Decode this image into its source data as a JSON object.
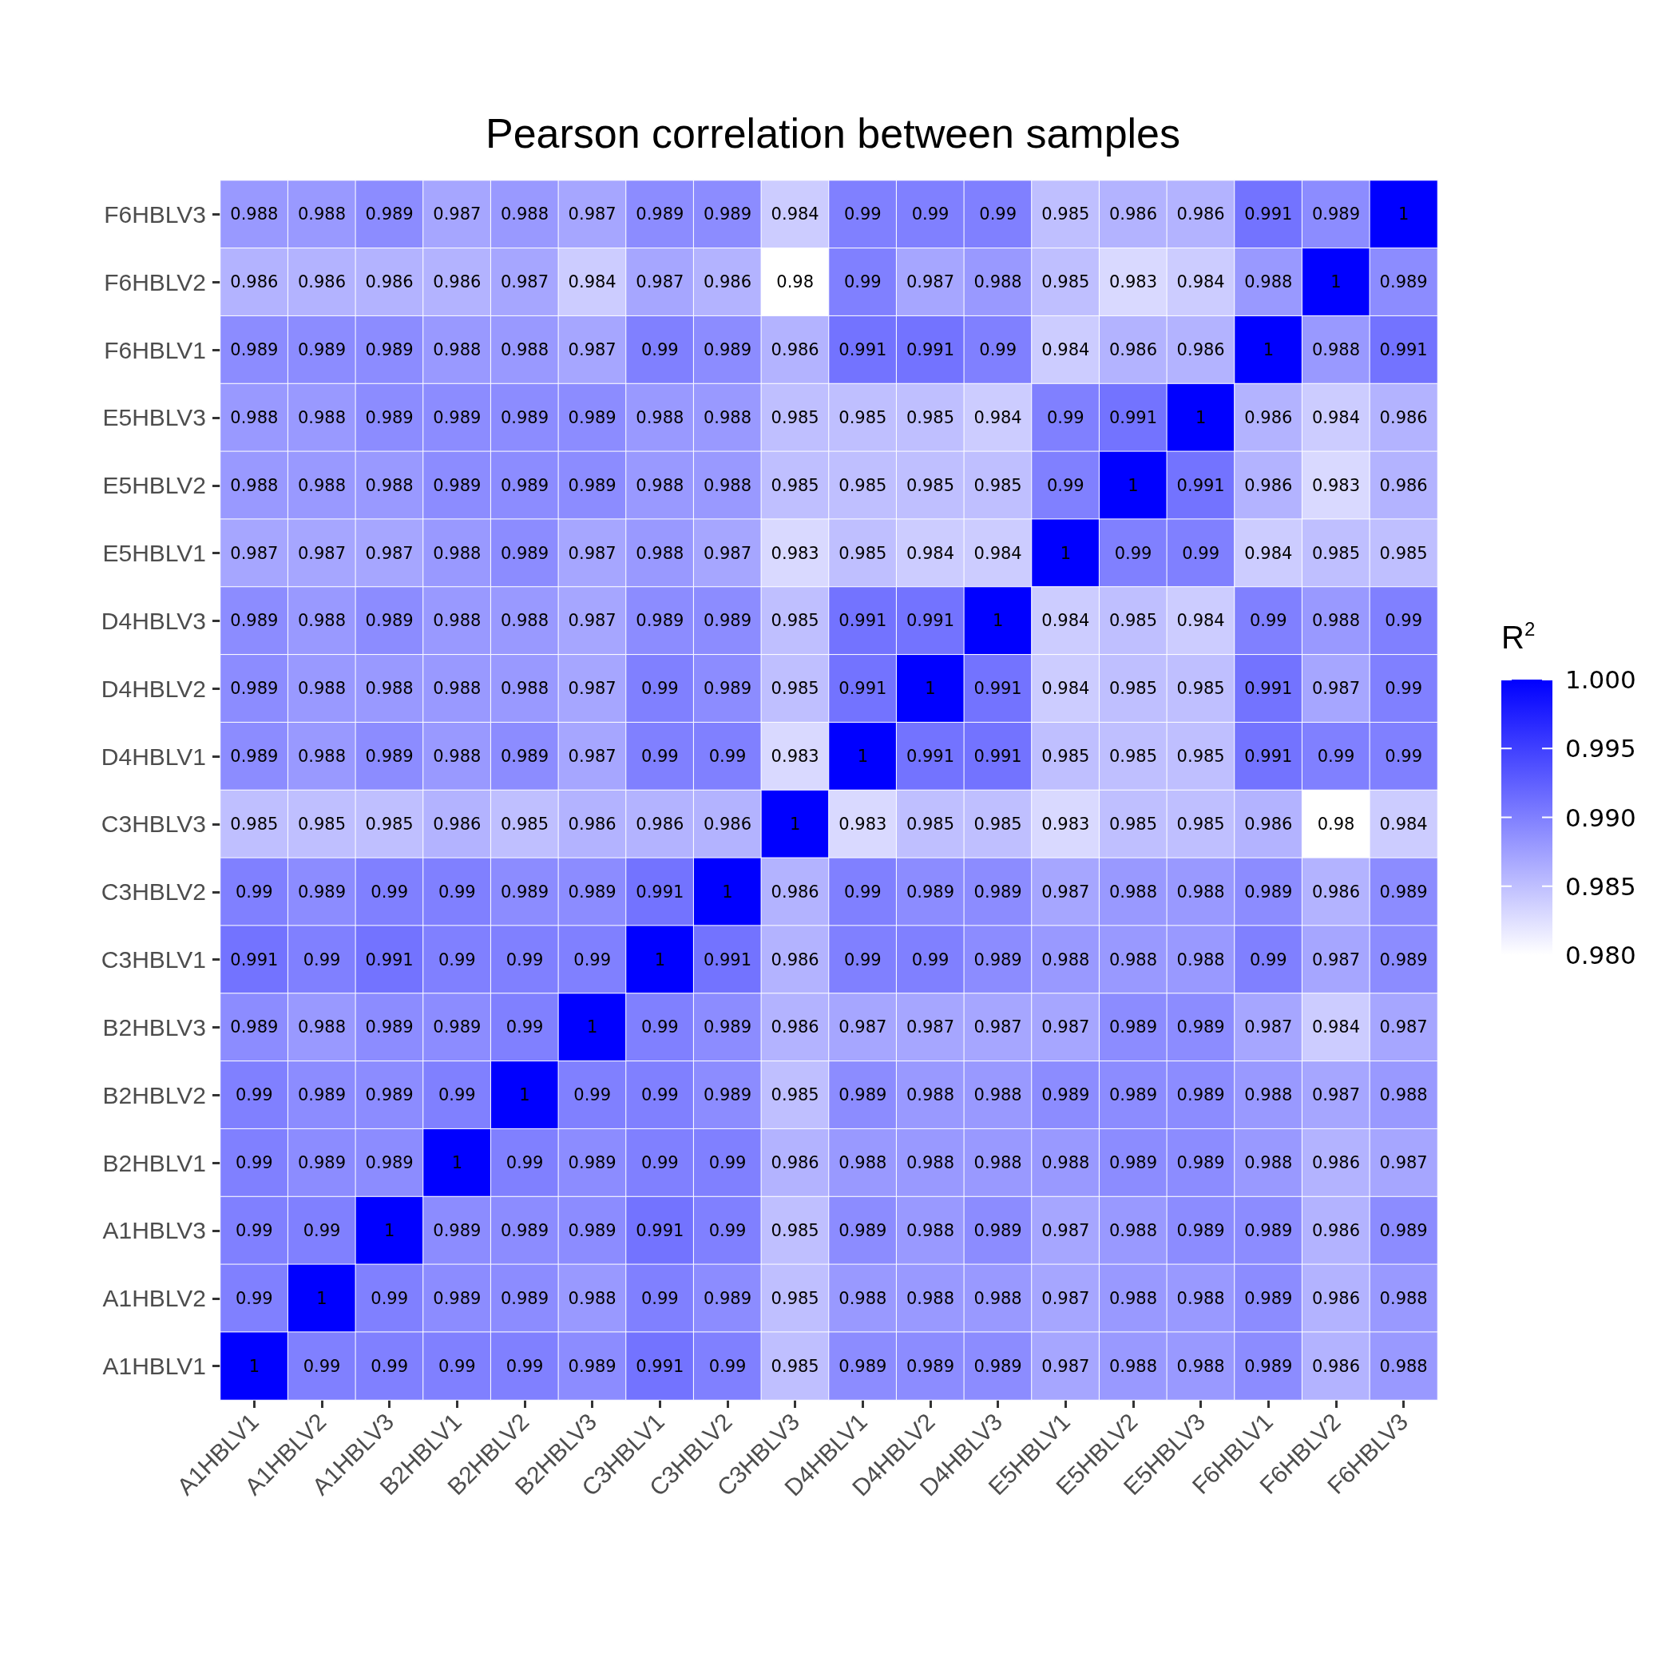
{
  "chart_data": {
    "type": "heatmap",
    "title": "Pearson correlation between samples",
    "clabel": "R$^{2}$",
    "categories": [
      "A1HBLV1",
      "A1HBLV2",
      "A1HBLV3",
      "B2HBLV1",
      "B2HBLV2",
      "B2HBLV3",
      "C3HBLV1",
      "C3HBLV2",
      "C3HBLV3",
      "D4HBLV1",
      "D4HBLV2",
      "D4HBLV3",
      "E5HBLV1",
      "E5HBLV2",
      "E5HBLV3",
      "F6HBLV1",
      "F6HBLV2",
      "F6HBLV3"
    ],
    "y_categories": [
      "F6HBLV3",
      "F6HBLV2",
      "F6HBLV1",
      "E5HBLV3",
      "E5HBLV2",
      "E5HBLV1",
      "D4HBLV3",
      "D4HBLV2",
      "D4HBLV1",
      "C3HBLV3",
      "C3HBLV2",
      "C3HBLV1",
      "B2HBLV3",
      "B2HBLV2",
      "B2HBLV1",
      "A1HBLV3",
      "A1HBLV2",
      "A1HBLV1"
    ],
    "cells": [
      [
        0.988,
        0.988,
        0.989,
        0.987,
        0.988,
        0.987,
        0.989,
        0.989,
        0.984,
        0.99,
        0.99,
        0.99,
        0.985,
        0.986,
        0.986,
        0.991,
        0.989,
        1
      ],
      [
        0.986,
        0.986,
        0.986,
        0.986,
        0.987,
        0.984,
        0.987,
        0.986,
        0.98,
        0.99,
        0.987,
        0.988,
        0.985,
        0.983,
        0.984,
        0.988,
        1,
        0.989
      ],
      [
        0.989,
        0.989,
        0.989,
        0.988,
        0.988,
        0.987,
        0.99,
        0.989,
        0.986,
        0.991,
        0.991,
        0.99,
        0.984,
        0.986,
        0.986,
        1,
        0.988,
        0.991
      ],
      [
        0.988,
        0.988,
        0.989,
        0.989,
        0.989,
        0.989,
        0.988,
        0.988,
        0.985,
        0.985,
        0.985,
        0.984,
        0.99,
        0.991,
        1,
        0.986,
        0.984,
        0.986
      ],
      [
        0.988,
        0.988,
        0.988,
        0.989,
        0.989,
        0.989,
        0.988,
        0.988,
        0.985,
        0.985,
        0.985,
        0.985,
        0.99,
        1,
        0.991,
        0.986,
        0.983,
        0.986
      ],
      [
        0.987,
        0.987,
        0.987,
        0.988,
        0.989,
        0.987,
        0.988,
        0.987,
        0.983,
        0.985,
        0.984,
        0.984,
        1,
        0.99,
        0.99,
        0.984,
        0.985,
        0.985
      ],
      [
        0.989,
        0.988,
        0.989,
        0.988,
        0.988,
        0.987,
        0.989,
        0.989,
        0.985,
        0.991,
        0.991,
        1,
        0.984,
        0.985,
        0.984,
        0.99,
        0.988,
        0.99
      ],
      [
        0.989,
        0.988,
        0.988,
        0.988,
        0.988,
        0.987,
        0.99,
        0.989,
        0.985,
        0.991,
        1,
        0.991,
        0.984,
        0.985,
        0.985,
        0.991,
        0.987,
        0.99
      ],
      [
        0.989,
        0.988,
        0.989,
        0.988,
        0.989,
        0.987,
        0.99,
        0.99,
        0.983,
        1,
        0.991,
        0.991,
        0.985,
        0.985,
        0.985,
        0.991,
        0.99,
        0.99
      ],
      [
        0.985,
        0.985,
        0.985,
        0.986,
        0.985,
        0.986,
        0.986,
        0.986,
        1,
        0.983,
        0.985,
        0.985,
        0.983,
        0.985,
        0.985,
        0.986,
        0.98,
        0.984
      ],
      [
        0.99,
        0.989,
        0.99,
        0.99,
        0.989,
        0.989,
        0.991,
        1,
        0.986,
        0.99,
        0.989,
        0.989,
        0.987,
        0.988,
        0.988,
        0.989,
        0.986,
        0.989
      ],
      [
        0.991,
        0.99,
        0.991,
        0.99,
        0.99,
        0.99,
        1,
        0.991,
        0.986,
        0.99,
        0.99,
        0.989,
        0.988,
        0.988,
        0.988,
        0.99,
        0.987,
        0.989
      ],
      [
        0.989,
        0.988,
        0.989,
        0.989,
        0.99,
        1,
        0.99,
        0.989,
        0.986,
        0.987,
        0.987,
        0.987,
        0.987,
        0.989,
        0.989,
        0.987,
        0.984,
        0.987
      ],
      [
        0.99,
        0.989,
        0.989,
        0.99,
        1,
        0.99,
        0.99,
        0.989,
        0.985,
        0.989,
        0.988,
        0.988,
        0.989,
        0.989,
        0.989,
        0.988,
        0.987,
        0.988
      ],
      [
        0.99,
        0.989,
        0.989,
        1,
        0.99,
        0.989,
        0.99,
        0.99,
        0.986,
        0.988,
        0.988,
        0.988,
        0.988,
        0.989,
        0.989,
        0.988,
        0.986,
        0.987
      ],
      [
        0.99,
        0.99,
        1,
        0.989,
        0.989,
        0.989,
        0.991,
        0.99,
        0.985,
        0.989,
        0.988,
        0.989,
        0.987,
        0.988,
        0.989,
        0.989,
        0.986,
        0.989
      ],
      [
        0.99,
        1,
        0.99,
        0.989,
        0.989,
        0.988,
        0.99,
        0.989,
        0.985,
        0.988,
        0.988,
        0.988,
        0.987,
        0.988,
        0.988,
        0.989,
        0.986,
        0.988
      ],
      [
        1,
        0.99,
        0.99,
        0.99,
        0.99,
        0.989,
        0.991,
        0.99,
        0.985,
        0.989,
        0.989,
        0.989,
        0.987,
        0.988,
        0.988,
        0.989,
        0.986,
        0.988
      ]
    ],
    "clim": [
      0.98,
      1
    ],
    "cticks": [
      {
        "value": 0.98,
        "label": "0.980"
      },
      {
        "value": 0.985,
        "label": "0.985"
      },
      {
        "value": 0.99,
        "label": "0.990"
      },
      {
        "value": 0.995,
        "label": "0.995"
      },
      {
        "value": 1,
        "label": "1.000"
      }
    ],
    "data_labels": true
  }
}
